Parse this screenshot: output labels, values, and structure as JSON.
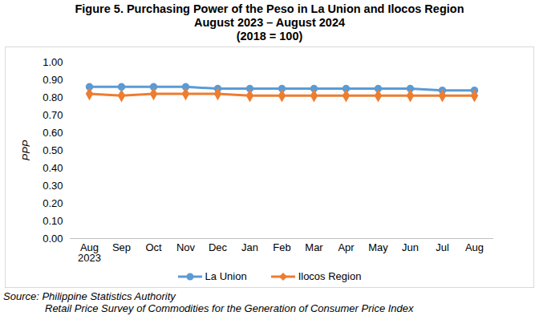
{
  "chart_data": {
    "type": "line",
    "title": "Figure 5.  Purchasing Power of the Peso in La Union and Ilocos Region",
    "subtitle": [
      "August 2023 – August 2024",
      "(2018 = 100)"
    ],
    "y_label": "PPP",
    "source": [
      "Source:  Philippine Statistics Authority",
      "Retail Price Survey of Commodities for the Generation of Consumer Price Index"
    ],
    "categories": [
      "Aug 2023",
      "Sep",
      "Oct",
      "Nov",
      "Dec",
      "Jan",
      "Feb",
      "Mar",
      "Apr",
      "May",
      "Jun",
      "Jul",
      "Aug"
    ],
    "series": [
      {
        "name": "La Union",
        "color": "#5b9bd5",
        "marker": "circle",
        "values": [
          0.86,
          0.86,
          0.86,
          0.86,
          0.85,
          0.85,
          0.85,
          0.85,
          0.85,
          0.85,
          0.85,
          0.84,
          0.84
        ]
      },
      {
        "name": "Ilocos Region",
        "color": "#ed7d31",
        "marker": "diamond",
        "values": [
          0.82,
          0.81,
          0.82,
          0.82,
          0.82,
          0.81,
          0.81,
          0.81,
          0.81,
          0.81,
          0.81,
          0.81,
          0.81
        ]
      }
    ],
    "ylim": [
      0,
      1
    ],
    "yticks": [
      {
        "value": 0,
        "label": "0.00"
      },
      {
        "value": 0.1,
        "label": "0.10"
      },
      {
        "value": 0.2,
        "label": "0.20"
      },
      {
        "value": 0.3,
        "label": "0.30"
      },
      {
        "value": 0.4,
        "label": "0.40"
      },
      {
        "value": 0.5,
        "label": "0.50"
      },
      {
        "value": 0.6,
        "label": "0.60"
      },
      {
        "value": 0.7,
        "label": "0.70"
      },
      {
        "value": 0.8,
        "label": "0.80"
      },
      {
        "value": 0.9,
        "label": "0.90"
      },
      {
        "value": 1,
        "label": "1.00"
      }
    ],
    "grid": false,
    "legend": "bottom"
  }
}
